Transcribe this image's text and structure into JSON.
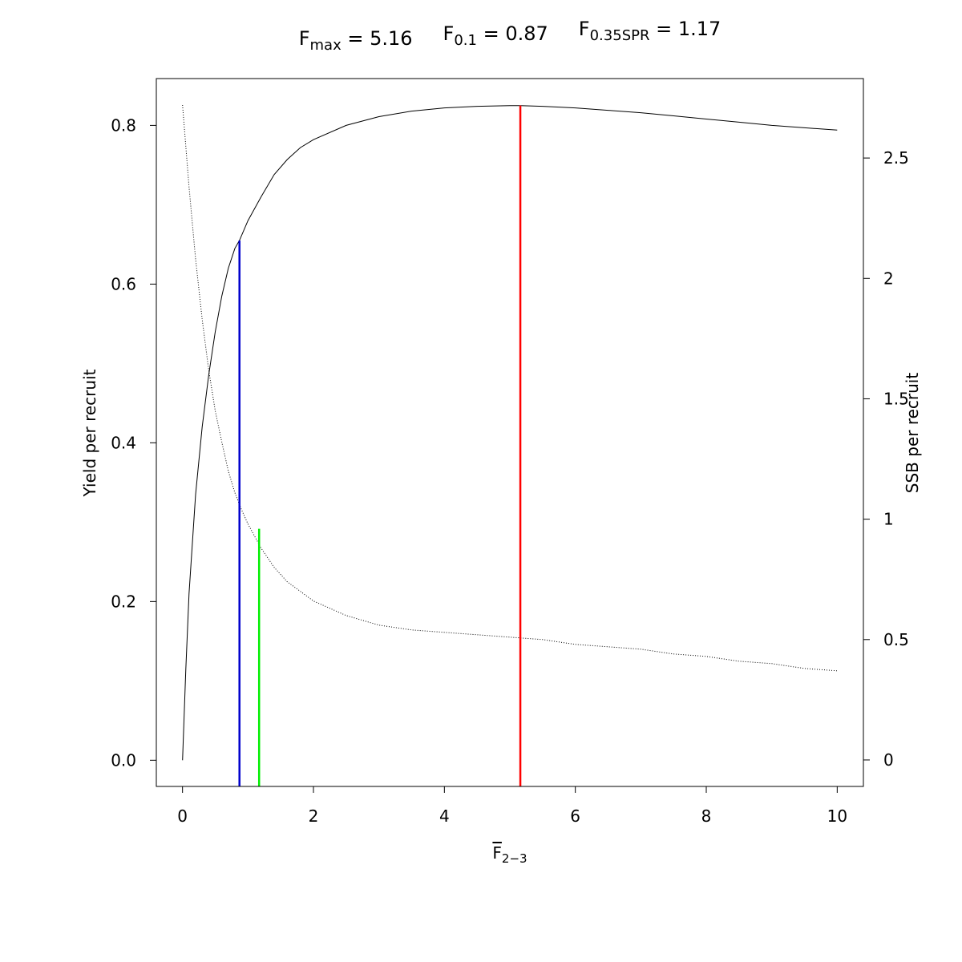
{
  "chart_data": {
    "type": "line",
    "title_parts": [
      {
        "base": "F",
        "sub": "max",
        "text": " = 5.16"
      },
      {
        "base": "F",
        "sub": "0.1",
        "text": " = 0.87"
      },
      {
        "base": "F",
        "sub": "0.35SPR",
        "text": " = 1.17"
      }
    ],
    "xlabel": {
      "base": "F",
      "sub": "2−3",
      "overline": true
    },
    "ylabel_left": "Yield per recruit",
    "ylabel_right": "SSB per recruit",
    "x_ticks": [
      "0",
      "2",
      "4",
      "6",
      "8",
      "10"
    ],
    "x_tick_values": [
      0,
      2,
      4,
      6,
      8,
      10
    ],
    "y_left_ticks": [
      "0.0",
      "0.2",
      "0.4",
      "0.6",
      "0.8"
    ],
    "y_left_tick_values": [
      0,
      0.2,
      0.4,
      0.6,
      0.8
    ],
    "y_right_ticks": [
      "0",
      "0.5",
      "1",
      "1.5",
      "2",
      "2.5"
    ],
    "y_right_tick_values": [
      0,
      0.5,
      1,
      1.5,
      2,
      2.5
    ],
    "xlim": [
      -0.4,
      10.4
    ],
    "ylim_left": [
      -0.033,
      0.859
    ],
    "ylim_right": [
      -0.11,
      2.83
    ],
    "grid": false,
    "legend": "none",
    "series": [
      {
        "role": "yield_per_recruit",
        "axis": "left",
        "style": "solid",
        "color": "#000000",
        "x": [
          0,
          0.05,
          0.1,
          0.2,
          0.3,
          0.4,
          0.5,
          0.6,
          0.7,
          0.8,
          0.87,
          1.0,
          1.2,
          1.4,
          1.6,
          1.8,
          2.0,
          2.5,
          3.0,
          3.5,
          4.0,
          4.5,
          5.0,
          5.16,
          5.5,
          6.0,
          6.5,
          7.0,
          7.5,
          8.0,
          8.5,
          9.0,
          9.5,
          10.0
        ],
        "y": [
          0.0,
          0.115,
          0.21,
          0.335,
          0.42,
          0.485,
          0.54,
          0.585,
          0.62,
          0.645,
          0.655,
          0.68,
          0.71,
          0.738,
          0.757,
          0.772,
          0.782,
          0.8,
          0.811,
          0.818,
          0.822,
          0.824,
          0.825,
          0.825,
          0.824,
          0.822,
          0.819,
          0.816,
          0.812,
          0.808,
          0.804,
          0.8,
          0.797,
          0.794
        ]
      },
      {
        "role": "ssb_per_recruit",
        "axis": "right",
        "style": "dotted",
        "color": "#000000",
        "x": [
          0,
          0.1,
          0.2,
          0.3,
          0.4,
          0.5,
          0.6,
          0.7,
          0.8,
          0.9,
          1.0,
          1.2,
          1.4,
          1.6,
          1.8,
          2.0,
          2.5,
          3.0,
          3.5,
          4.0,
          4.5,
          5.0,
          5.5,
          6.0,
          6.5,
          7.0,
          7.5,
          8.0,
          8.5,
          9.0,
          9.5,
          10.0
        ],
        "y": [
          2.72,
          2.38,
          2.08,
          1.83,
          1.62,
          1.45,
          1.32,
          1.2,
          1.11,
          1.04,
          0.98,
          0.88,
          0.8,
          0.74,
          0.7,
          0.66,
          0.6,
          0.56,
          0.54,
          0.53,
          0.52,
          0.51,
          0.5,
          0.48,
          0.47,
          0.46,
          0.44,
          0.43,
          0.41,
          0.4,
          0.38,
          0.37
        ]
      }
    ],
    "reference_lines": [
      {
        "name": "F0.1",
        "x": 0.87,
        "y_top": 0.655,
        "axis": "left",
        "color": "#0000cc"
      },
      {
        "name": "F0.35SPR",
        "x": 1.17,
        "y_top": 0.96,
        "axis": "right",
        "color": "#00ee00"
      },
      {
        "name": "Fmax",
        "x": 5.16,
        "y_top": 0.825,
        "axis": "left",
        "color": "#ff0000"
      }
    ]
  }
}
